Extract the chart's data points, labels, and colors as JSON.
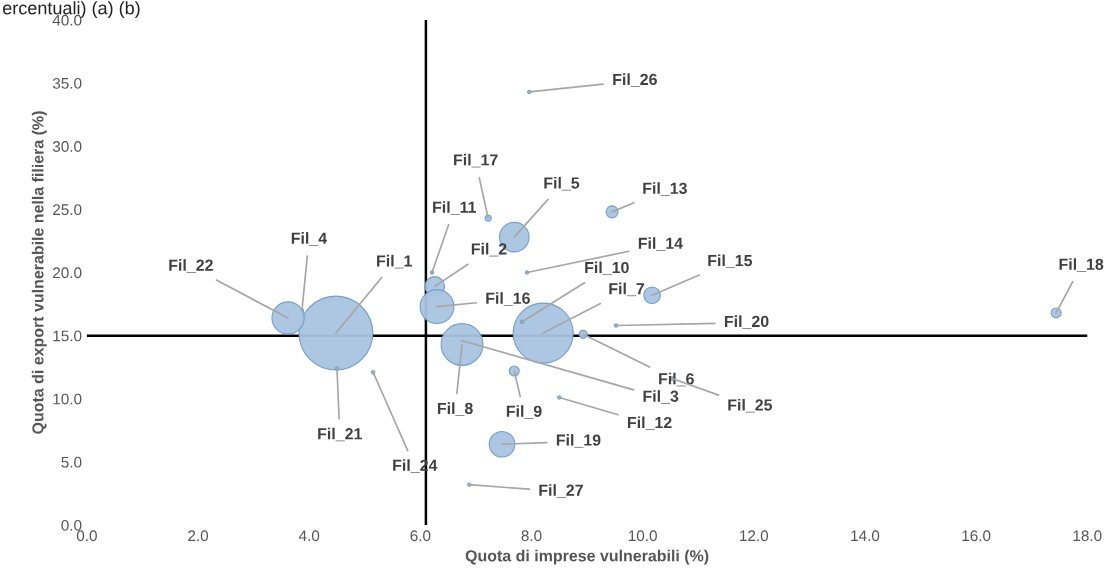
{
  "chart_data": {
    "type": "bubble",
    "title": "ercentuali) (a) (b)",
    "xlabel": "Quota di imprese vulnerabili (%)",
    "ylabel": "Quota di export vulnerabile nella filiera (%)",
    "annotations": [
      {
        "text": "Fil_1",
        "x": 4.48,
        "y": 15.2
      },
      {
        "text": "Fil_2",
        "x": 6.26,
        "y": 18.9
      },
      {
        "text": "Fil_3",
        "x": 6.75,
        "y": 14.6
      },
      {
        "text": "Fil_4",
        "x": 3.87,
        "y": 17.0
      },
      {
        "text": "Fil_5",
        "x": 7.69,
        "y": 22.8
      },
      {
        "text": "Fil_6",
        "x": 8.93,
        "y": 15.1
      },
      {
        "text": "Fil_7",
        "x": 8.21,
        "y": 15.2
      },
      {
        "text": "Fil_8",
        "x": 6.75,
        "y": 14.3
      },
      {
        "text": "Fil_9",
        "x": 7.69,
        "y": 12.2
      },
      {
        "text": "Fil_10",
        "x": 7.83,
        "y": 16.1
      },
      {
        "text": "Fil_11",
        "x": 6.21,
        "y": 20.0
      },
      {
        "text": "Fil_12",
        "x": 8.5,
        "y": 10.1
      },
      {
        "text": "Fil_13",
        "x": 9.45,
        "y": 24.8
      },
      {
        "text": "Fil_14",
        "x": 7.92,
        "y": 20.0
      },
      {
        "text": "Fil_15",
        "x": 10.17,
        "y": 18.2
      },
      {
        "text": "Fil_16",
        "x": 6.3,
        "y": 17.3
      },
      {
        "text": "Fil_17",
        "x": 7.22,
        "y": 24.3
      },
      {
        "text": "Fil_18",
        "x": 17.44,
        "y": 16.8
      },
      {
        "text": "Fil_19",
        "x": 7.47,
        "y": 6.4
      },
      {
        "text": "Fil_20",
        "x": 9.52,
        "y": 15.8
      },
      {
        "text": "Fil_21",
        "x": 4.5,
        "y": 12.4
      },
      {
        "text": "Fil_22",
        "x": 3.62,
        "y": 16.4
      },
      {
        "text": "Fil_24",
        "x": 5.15,
        "y": 12.1
      },
      {
        "text": "Fil_25",
        "x": 10.53,
        "y": 11.6
      },
      {
        "text": "Fil_26",
        "x": 7.96,
        "y": 34.3
      },
      {
        "text": "Fil_27",
        "x": 6.88,
        "y": 3.2
      }
    ],
    "x": [
      4.48,
      6.26,
      6.75,
      3.87,
      7.69,
      8.93,
      8.21,
      6.75,
      7.69,
      7.83,
      6.21,
      8.5,
      9.45,
      7.92,
      10.17,
      6.3,
      7.22,
      17.44,
      7.47,
      9.52,
      4.5,
      3.62,
      5.15,
      10.53,
      7.96,
      6.88
    ],
    "values": [
      15.2,
      18.9,
      14.6,
      17.0,
      22.8,
      15.1,
      15.2,
      14.3,
      12.2,
      16.1,
      20.0,
      10.1,
      24.8,
      20.0,
      18.2,
      17.3,
      24.3,
      16.8,
      6.4,
      15.8,
      12.4,
      16.4,
      12.1,
      11.6,
      34.3,
      3.2
    ],
    "sizes": [
      1,
      0.07,
      0.002,
      0.002,
      0.16,
      0.012,
      0.66,
      0.32,
      0.018,
      0.002,
      0.002,
      0.002,
      0.026,
      0.002,
      0.05,
      0.21,
      0.007,
      0.018,
      0.12,
      0.002,
      0.002,
      0.19,
      0.002,
      0.002,
      0.002,
      0.002
    ],
    "color": "#a9c4e0",
    "xlim": [
      0,
      18
    ],
    "xticks": [
      {
        "value": 0,
        "label": "0.0"
      },
      {
        "value": 2,
        "label": "2.0"
      },
      {
        "value": 4,
        "label": "4.0"
      },
      {
        "value": 6,
        "label": "6.0"
      },
      {
        "value": 8,
        "label": "8.0"
      },
      {
        "value": 10,
        "label": "10.0"
      },
      {
        "value": 12,
        "label": "12.0"
      },
      {
        "value": 14,
        "label": "14.0"
      },
      {
        "value": 16,
        "label": "16.0"
      },
      {
        "value": 18,
        "label": "18.0"
      }
    ],
    "ylim": [
      0,
      40
    ],
    "yticks": [
      {
        "value": 0,
        "label": "0.0"
      },
      {
        "value": 5,
        "label": "5.0"
      },
      {
        "value": 10,
        "label": "10.0"
      },
      {
        "value": 15,
        "label": "15.0"
      },
      {
        "value": 20,
        "label": "20.0"
      },
      {
        "value": 25,
        "label": "25.0"
      },
      {
        "value": 30,
        "label": "30.0"
      },
      {
        "value": 35,
        "label": "35.0"
      },
      {
        "value": 40,
        "label": "40.0"
      }
    ],
    "ref_lines": [
      {
        "axis": "x",
        "value": 6.1,
        "color": "#000000"
      },
      {
        "axis": "y",
        "value": 15.0,
        "color": "#000000"
      }
    ],
    "grid": false,
    "legend": false
  }
}
